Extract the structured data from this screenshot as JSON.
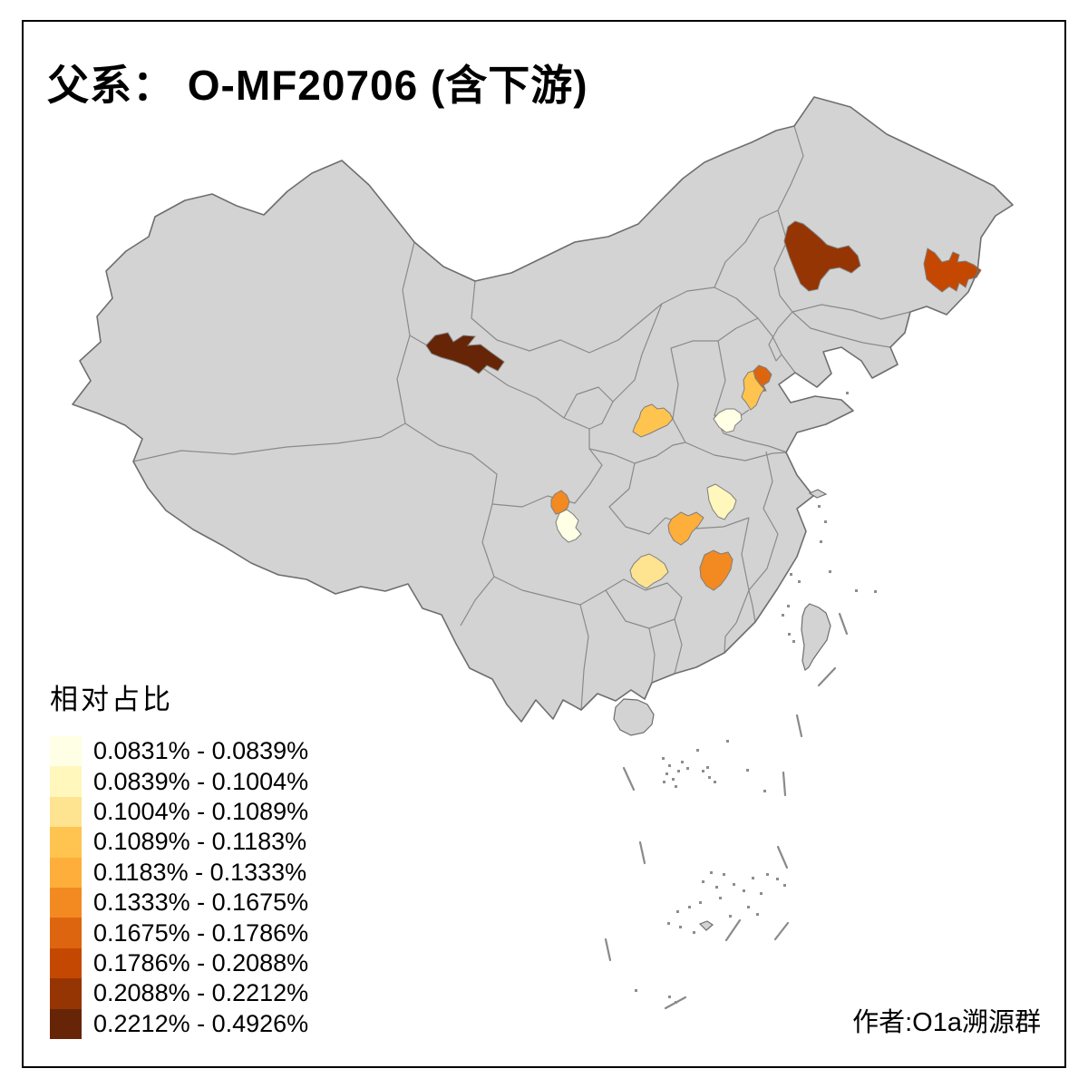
{
  "title": "父系： O-MF20706 (含下游)",
  "attribution": "作者:O1a溯源群",
  "legend": {
    "title": "相对占比",
    "classes": [
      {
        "range": "0.0831% - 0.0839%",
        "color": "#FFFFE5"
      },
      {
        "range": "0.0839% - 0.1004%",
        "color": "#FFF7BC"
      },
      {
        "range": "0.1004% - 0.1089%",
        "color": "#FEE391"
      },
      {
        "range": "0.1089% - 0.1183%",
        "color": "#FEC44F"
      },
      {
        "range": "0.1183% - 0.1333%",
        "color": "#FDAE3B"
      },
      {
        "range": "0.1333% - 0.1675%",
        "color": "#F28A21"
      },
      {
        "range": "0.1675% - 0.1786%",
        "color": "#DD650F"
      },
      {
        "range": "0.1786% - 0.2088%",
        "color": "#C44802"
      },
      {
        "range": "0.2088% - 0.2212%",
        "color": "#953503"
      },
      {
        "range": "0.2212% - 0.4926%",
        "color": "#662506"
      }
    ]
  },
  "map": {
    "colors": {
      "land": "#D3D3D3",
      "inner_boundary": "#8A8A8A",
      "outer_boundary": "#6E6E6E",
      "region_stroke": "#7E7E7E",
      "background": "#FFFFFF",
      "frame": "#000000"
    },
    "regions": [
      {
        "name": "gansu-hexi-corridor",
        "color": "#662506",
        "range": "0.2212% - 0.4926%"
      },
      {
        "name": "east-inner-mongolia",
        "color": "#953503",
        "range": "0.2088% - 0.2212%"
      },
      {
        "name": "east-heilongjiang",
        "color": "#C44802",
        "range": "0.1786% - 0.2088%"
      },
      {
        "name": "north-shandong",
        "color": "#DD650F",
        "range": "0.1675% - 0.1786%"
      },
      {
        "name": "central-hunan",
        "color": "#F28A21",
        "range": "0.1333% - 0.1675%"
      },
      {
        "name": "north-sichuan",
        "color": "#F28A21",
        "range": "0.1333% - 0.1675%"
      },
      {
        "name": "northwest-hunan",
        "color": "#FDAE3B",
        "range": "0.1183% - 0.1333%"
      },
      {
        "name": "west-shandong",
        "color": "#FEC44F",
        "range": "0.1089% - 0.1183%"
      },
      {
        "name": "shaanxi-gansu-border",
        "color": "#FEC44F",
        "range": "0.1089% - 0.1183%"
      },
      {
        "name": "north-guizhou",
        "color": "#FEE391",
        "range": "0.1004% - 0.1089%"
      },
      {
        "name": "central-hubei",
        "color": "#FFF7BC",
        "range": "0.0839% - 0.1004%"
      },
      {
        "name": "south-hebei",
        "color": "#FFFFE5",
        "range": "0.0831% - 0.0839%"
      },
      {
        "name": "chengdu-area",
        "color": "#FFFFE5",
        "range": "0.0831% - 0.0839%"
      }
    ]
  }
}
